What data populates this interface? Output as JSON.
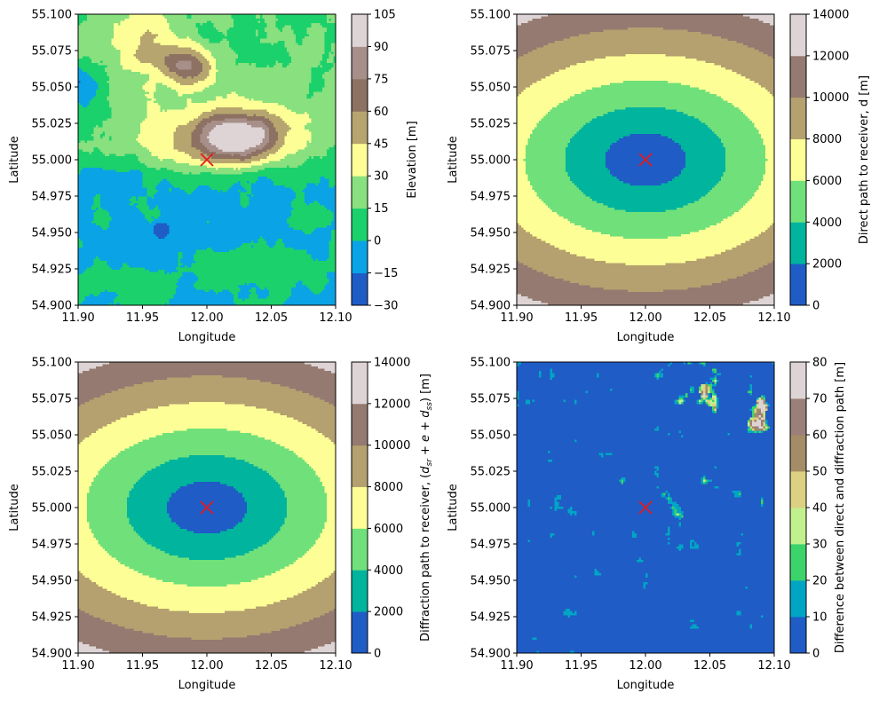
{
  "chart_data": [
    {
      "type": "contour",
      "xlabel": "Longitude",
      "ylabel": "Latitude",
      "xlim": [
        11.9,
        12.1
      ],
      "ylim": [
        54.9,
        55.1
      ],
      "xticks": [
        "11.90",
        "11.95",
        "12.00",
        "12.05",
        "12.10"
      ],
      "yticks": [
        "54.900",
        "54.925",
        "54.950",
        "54.975",
        "55.000",
        "55.025",
        "55.050",
        "55.075",
        "55.100"
      ],
      "colorbar_label": "Elevation [m]",
      "levels": [
        -30,
        -15,
        0,
        15,
        30,
        45,
        60,
        75,
        90,
        105
      ],
      "level_labels": [
        "−30",
        "−15",
        "0",
        "15",
        "30",
        "45",
        "60",
        "75",
        "90",
        "105"
      ],
      "colors": [
        "#1f5cc6",
        "#0aa3e5",
        "#1bd16c",
        "#88e07e",
        "#fdfe96",
        "#b7a56f",
        "#8d7162",
        "#a78f8a",
        "#ded4d5"
      ],
      "marker": {
        "x": 12.0,
        "y": 55.0,
        "symbol": "x",
        "color": "#e41a1c"
      }
    },
    {
      "type": "contour",
      "xlabel": "Longitude",
      "ylabel": "Latitude",
      "xlim": [
        11.9,
        12.1
      ],
      "ylim": [
        54.9,
        55.1
      ],
      "xticks": [
        "11.90",
        "11.95",
        "12.00",
        "12.05",
        "12.10"
      ],
      "yticks": [
        "54.900",
        "54.925",
        "54.950",
        "54.975",
        "55.000",
        "55.025",
        "55.050",
        "55.075",
        "55.100"
      ],
      "colorbar_label": "Direct path to receiver, d [m]",
      "levels": [
        0,
        2000,
        4000,
        6000,
        8000,
        10000,
        12000,
        14000
      ],
      "level_labels": [
        "0",
        "2000",
        "4000",
        "6000",
        "8000",
        "10000",
        "12000",
        "14000"
      ],
      "colors": [
        "#1f5cc6",
        "#00b49e",
        "#70e07a",
        "#fdfe96",
        "#b5a06f",
        "#947a70",
        "#ded4d5"
      ],
      "marker": {
        "x": 12.0,
        "y": 55.0,
        "symbol": "x",
        "color": "#e41a1c"
      }
    },
    {
      "type": "contour",
      "xlabel": "Longitude",
      "ylabel": "Latitude",
      "xlim": [
        11.9,
        12.1
      ],
      "ylim": [
        54.9,
        55.1
      ],
      "xticks": [
        "11.90",
        "11.95",
        "12.00",
        "12.05",
        "12.10"
      ],
      "yticks": [
        "54.900",
        "54.925",
        "54.950",
        "54.975",
        "55.000",
        "55.025",
        "55.050",
        "55.075",
        "55.100"
      ],
      "colorbar_label": "Diffraction path to receiver, (d_sr + e + d_ss) [m]",
      "colorbar_label_parts": {
        "pre": "Diffraction path to receiver, (",
        "d": "d",
        "sub1": "sr",
        "mid1": " + ",
        "e": "e",
        "mid2": " + ",
        "sub2": "ss",
        "post": ") [m]"
      },
      "levels": [
        0,
        2000,
        4000,
        6000,
        8000,
        10000,
        12000,
        14000
      ],
      "level_labels": [
        "0",
        "2000",
        "4000",
        "6000",
        "8000",
        "10000",
        "12000",
        "14000"
      ],
      "colors": [
        "#1f5cc6",
        "#00b49e",
        "#70e07a",
        "#fdfe96",
        "#b5a06f",
        "#947a70",
        "#ded4d5"
      ],
      "marker": {
        "x": 12.0,
        "y": 55.0,
        "symbol": "x",
        "color": "#e41a1c"
      }
    },
    {
      "type": "contour",
      "xlabel": "Longitude",
      "ylabel": "Latitude",
      "xlim": [
        11.9,
        12.1
      ],
      "ylim": [
        54.9,
        55.1
      ],
      "xticks": [
        "11.90",
        "11.95",
        "12.00",
        "12.05",
        "12.10"
      ],
      "yticks": [
        "54.900",
        "54.925",
        "54.950",
        "54.975",
        "55.000",
        "55.025",
        "55.050",
        "55.075",
        "55.100"
      ],
      "colorbar_label": "Difference between direct and diffraction path [m]",
      "levels": [
        0,
        10,
        20,
        30,
        40,
        50,
        60,
        70,
        80
      ],
      "level_labels": [
        "0",
        "10",
        "20",
        "30",
        "40",
        "50",
        "60",
        "70",
        "80"
      ],
      "colors": [
        "#1f5cc6",
        "#00a5c4",
        "#3bd36a",
        "#c1f08e",
        "#dcd182",
        "#a48c66",
        "#9a8079",
        "#ded4d5"
      ],
      "marker": {
        "x": 12.0,
        "y": 55.0,
        "symbol": "x",
        "color": "#e41a1c"
      }
    }
  ]
}
